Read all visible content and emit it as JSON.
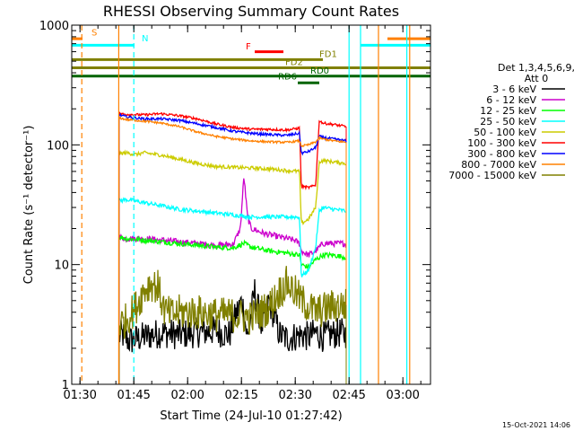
{
  "chart_data": {
    "type": "line",
    "title": "RHESSI Observing Summary Count Rates",
    "xlabel": "Start Time (24-Jul-10 01:27:42)",
    "ylabel": "Count Rate (s⁻¹ detector⁻¹)",
    "yscale": "log",
    "ylim": [
      1,
      1000
    ],
    "xlim_minutes": [
      0,
      100
    ],
    "x_ticks": [
      {
        "t": 2.3,
        "label": "01:30"
      },
      {
        "t": 17.3,
        "label": "01:45"
      },
      {
        "t": 32.3,
        "label": "02:00"
      },
      {
        "t": 47.3,
        "label": "02:15"
      },
      {
        "t": 62.3,
        "label": "02:30"
      },
      {
        "t": 77.3,
        "label": "02:45"
      },
      {
        "t": 92.3,
        "label": "03:00"
      }
    ],
    "y_ticks": [
      {
        "v": 1,
        "label": "1"
      },
      {
        "v": 10,
        "label": "10"
      },
      {
        "v": 100,
        "label": "100"
      },
      {
        "v": 1000,
        "label": "1000"
      }
    ],
    "legend": {
      "header": [
        "Det 1,3,4,5,6,9,",
        "Att 0"
      ],
      "placement": "right"
    },
    "series": [
      {
        "name": "3 - 6 keV",
        "color": "#000000",
        "noise": 0.3,
        "points": [
          [
            13.2,
            2.5
          ],
          [
            14,
            2.6
          ],
          [
            16,
            2.3
          ],
          [
            20,
            2.5
          ],
          [
            25,
            2.7
          ],
          [
            30,
            2.6
          ],
          [
            35,
            2.7
          ],
          [
            40,
            2.8
          ],
          [
            44,
            2.6
          ],
          [
            46,
            4
          ],
          [
            47.5,
            5
          ],
          [
            49,
            2.4
          ],
          [
            51,
            6
          ],
          [
            53,
            3
          ],
          [
            55,
            5
          ],
          [
            58,
            2.6
          ],
          [
            60,
            2.4
          ],
          [
            62,
            2.5
          ],
          [
            64,
            2.6
          ],
          [
            66,
            2.5
          ],
          [
            68,
            2.7
          ],
          [
            70,
            2.5
          ],
          [
            72,
            2.6
          ],
          [
            75,
            2.7
          ],
          [
            76.5,
            2.6
          ]
        ]
      },
      {
        "name": "6 - 12 keV",
        "color": "#cc00cc",
        "noise": 0.06,
        "points": [
          [
            13.2,
            17
          ],
          [
            15,
            16.5
          ],
          [
            20,
            16.5
          ],
          [
            25,
            16
          ],
          [
            30,
            15.5
          ],
          [
            35,
            15
          ],
          [
            40,
            14.5
          ],
          [
            45,
            14.8
          ],
          [
            47,
            20
          ],
          [
            48,
            55
          ],
          [
            49,
            25
          ],
          [
            50,
            20
          ],
          [
            52,
            19
          ],
          [
            54,
            18
          ],
          [
            56,
            17.5
          ],
          [
            58,
            17
          ],
          [
            60,
            16.5
          ],
          [
            62,
            16
          ],
          [
            63.5,
            15
          ],
          [
            64,
            13
          ],
          [
            66,
            12
          ],
          [
            68,
            13
          ],
          [
            70,
            15
          ],
          [
            72,
            15
          ],
          [
            76,
            15
          ],
          [
            76.5,
            14.5
          ]
        ]
      },
      {
        "name": "12 - 25 keV",
        "color": "#00ff00",
        "noise": 0.05,
        "points": [
          [
            13.2,
            17
          ],
          [
            15,
            16.5
          ],
          [
            20,
            16
          ],
          [
            25,
            15.5
          ],
          [
            30,
            15
          ],
          [
            35,
            14.5
          ],
          [
            40,
            14
          ],
          [
            45,
            13.8
          ],
          [
            48,
            15
          ],
          [
            50,
            14
          ],
          [
            55,
            13
          ],
          [
            60,
            12.5
          ],
          [
            63.5,
            12
          ],
          [
            64,
            10
          ],
          [
            66,
            9.5
          ],
          [
            68,
            11
          ],
          [
            70,
            12
          ],
          [
            73,
            12
          ],
          [
            76.5,
            11.5
          ]
        ]
      },
      {
        "name": "25 - 50 keV",
        "color": "#00ffff",
        "noise": 0.04,
        "points": [
          [
            13.2,
            34
          ],
          [
            15,
            35
          ],
          [
            20,
            33
          ],
          [
            25,
            31
          ],
          [
            30,
            29
          ],
          [
            35,
            28
          ],
          [
            40,
            27
          ],
          [
            45,
            26
          ],
          [
            50,
            25
          ],
          [
            55,
            25
          ],
          [
            60,
            25
          ],
          [
            63.5,
            25
          ],
          [
            64,
            8
          ],
          [
            66,
            9
          ],
          [
            68,
            14
          ],
          [
            69,
            28
          ],
          [
            70,
            30
          ],
          [
            73,
            29
          ],
          [
            76.5,
            28
          ]
        ]
      },
      {
        "name": "50 - 100 keV",
        "color": "#cccc00",
        "noise": 0.035,
        "points": [
          [
            13.2,
            84
          ],
          [
            15,
            86
          ],
          [
            18,
            83
          ],
          [
            20,
            86
          ],
          [
            25,
            82
          ],
          [
            30,
            76
          ],
          [
            35,
            70
          ],
          [
            40,
            66
          ],
          [
            45,
            65
          ],
          [
            50,
            64
          ],
          [
            55,
            63
          ],
          [
            60,
            61
          ],
          [
            63.5,
            60
          ],
          [
            64,
            22
          ],
          [
            66,
            24
          ],
          [
            68,
            30
          ],
          [
            69,
            72
          ],
          [
            70,
            74
          ],
          [
            73,
            72
          ],
          [
            76.5,
            70
          ]
        ]
      },
      {
        "name": "100 - 300 keV",
        "color": "#ff0000",
        "noise": 0.025,
        "points": [
          [
            13.2,
            182
          ],
          [
            15,
            180
          ],
          [
            20,
            178
          ],
          [
            25,
            182
          ],
          [
            30,
            175
          ],
          [
            35,
            165
          ],
          [
            40,
            150
          ],
          [
            45,
            140
          ],
          [
            50,
            135
          ],
          [
            55,
            135
          ],
          [
            60,
            133
          ],
          [
            63.5,
            138
          ],
          [
            64,
            45
          ],
          [
            66,
            44
          ],
          [
            68,
            46
          ],
          [
            69,
            160
          ],
          [
            70,
            152
          ],
          [
            73,
            148
          ],
          [
            76.5,
            142
          ]
        ]
      },
      {
        "name": "300 - 800 keV",
        "color": "#0000ff",
        "noise": 0.025,
        "points": [
          [
            13.2,
            178
          ],
          [
            15,
            172
          ],
          [
            20,
            165
          ],
          [
            25,
            165
          ],
          [
            30,
            160
          ],
          [
            35,
            150
          ],
          [
            40,
            140
          ],
          [
            45,
            130
          ],
          [
            50,
            125
          ],
          [
            55,
            122
          ],
          [
            60,
            120
          ],
          [
            63.5,
            125
          ],
          [
            64,
            85
          ],
          [
            66,
            88
          ],
          [
            68,
            95
          ],
          [
            69,
            118
          ],
          [
            70,
            115
          ],
          [
            73,
            112
          ],
          [
            76.5,
            108
          ]
        ]
      },
      {
        "name": "800 - 7000 keV",
        "color": "#ff8000",
        "noise": 0.02,
        "points": [
          [
            13.2,
            168
          ],
          [
            15,
            163
          ],
          [
            20,
            158
          ],
          [
            25,
            152
          ],
          [
            30,
            142
          ],
          [
            35,
            128
          ],
          [
            40,
            118
          ],
          [
            45,
            112
          ],
          [
            50,
            108
          ],
          [
            55,
            106
          ],
          [
            60,
            105
          ],
          [
            63.5,
            108
          ],
          [
            64,
            98
          ],
          [
            66,
            100
          ],
          [
            68,
            106
          ],
          [
            69,
            114
          ],
          [
            70,
            112
          ],
          [
            73,
            108
          ],
          [
            76.5,
            105
          ]
        ]
      },
      {
        "name": "7000 - 15000 keV",
        "color": "#808000",
        "noise": 0.35,
        "points": [
          [
            13.2,
            3.2
          ],
          [
            15,
            3.4
          ],
          [
            18,
            4.5
          ],
          [
            20,
            6
          ],
          [
            22,
            7
          ],
          [
            24,
            6.5
          ],
          [
            26,
            4
          ],
          [
            28,
            3.8
          ],
          [
            30,
            4
          ],
          [
            35,
            4
          ],
          [
            40,
            3.8
          ],
          [
            45,
            3.8
          ],
          [
            50,
            3.6
          ],
          [
            55,
            4.4
          ],
          [
            58,
            6
          ],
          [
            60,
            7
          ],
          [
            62,
            6
          ],
          [
            64,
            5
          ],
          [
            66,
            4.5
          ],
          [
            68,
            4
          ],
          [
            70,
            4.2
          ],
          [
            73,
            4.5
          ],
          [
            76.5,
            4.6
          ]
        ]
      }
    ],
    "annotations": [
      {
        "label": "S",
        "color": "#ff8000",
        "x_start": 0,
        "x_end": 3,
        "level": 770,
        "style": "solid"
      },
      {
        "label": "",
        "color": "#ff8000",
        "x_start": 88,
        "x_end": 100,
        "level": 770,
        "style": "solid"
      },
      {
        "label": "N",
        "color": "#00ffff",
        "x_start": 0,
        "x_end": 17.5,
        "level": 680,
        "style": "solid"
      },
      {
        "label": "",
        "color": "#00ffff",
        "x_start": 80.5,
        "x_end": 100,
        "level": 680,
        "style": "solid"
      },
      {
        "label": "F",
        "color": "#ff0000",
        "x_start": 51,
        "x_end": 59,
        "level": 600,
        "style": "solid"
      },
      {
        "label": "FD1",
        "color": "#808000",
        "x_start": 0,
        "x_end": 70,
        "level": 515,
        "style": "solid"
      },
      {
        "label": "FD2",
        "color": "#808000",
        "x_start": 0,
        "x_end": 100,
        "level": 440,
        "style": "solid"
      },
      {
        "label": "RD0",
        "color": "#006400",
        "x_start": 0,
        "x_end": 100,
        "level": 375,
        "style": "solid"
      },
      {
        "label": "RD6",
        "color": "#006400",
        "x_start": 63,
        "x_end": 69,
        "level": 330,
        "style": "solid"
      }
    ],
    "vertical_lines": [
      {
        "x": 2.8,
        "color": "#ff8000",
        "style": "dashed"
      },
      {
        "x": 17.3,
        "color": "#00ffff",
        "style": "dashed"
      },
      {
        "x": 13.1,
        "color": "#ff8000",
        "style": "solid"
      },
      {
        "x": 77.3,
        "color": "#00ffff",
        "style": "solid"
      },
      {
        "x": 80.5,
        "color": "#00ffff",
        "style": "solid"
      },
      {
        "x": 85.5,
        "color": "#ff8000",
        "style": "solid"
      },
      {
        "x": 93.4,
        "color": "#00ffff",
        "style": "solid"
      },
      {
        "x": 94.2,
        "color": "#ff8000",
        "style": "solid"
      }
    ]
  },
  "footer": {
    "timestamp": "15-Oct-2021 14:06"
  }
}
